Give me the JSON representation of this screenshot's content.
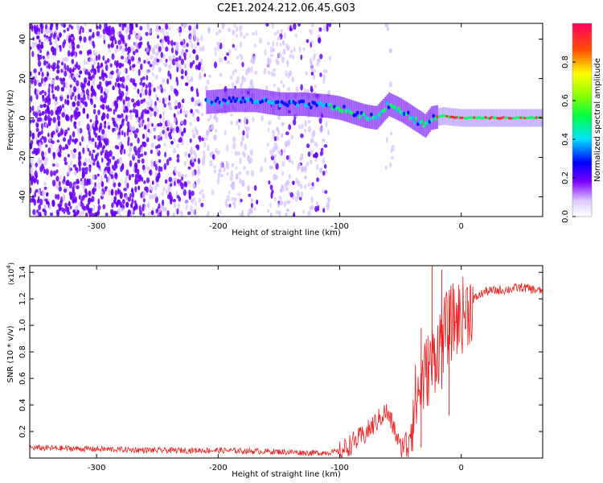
{
  "title": "C2E1.2024.212.06.45.G03",
  "colors": {
    "spectrogram_purple": "#6a00ff",
    "spectrogram_light": "#d6c0ff",
    "snr_line": "#ee2222"
  },
  "chart_data": [
    {
      "type": "heatmap",
      "name": "spectrogram",
      "xlabel": "Height of straight line (km)",
      "ylabel": "Frequency (Hz)",
      "xlim": [
        -355,
        67
      ],
      "ylim": [
        -50,
        48
      ],
      "xticks": [
        -300,
        -200,
        -100,
        0
      ],
      "yticks": [
        -40,
        -20,
        0,
        20,
        40
      ],
      "colorbar": {
        "label": "Normalized spectral amplitude",
        "range": [
          0,
          1
        ],
        "ticks": [
          "0.0",
          "0.2",
          "0.4",
          "0.6",
          "0.8"
        ],
        "tick_values": [
          0.0,
          0.2,
          0.4,
          0.6,
          0.8
        ]
      },
      "frequency_track": [
        {
          "x": -210,
          "y": 8
        },
        {
          "x": -190,
          "y": 9
        },
        {
          "x": -170,
          "y": 9
        },
        {
          "x": -150,
          "y": 7
        },
        {
          "x": -130,
          "y": 7
        },
        {
          "x": -110,
          "y": 6
        },
        {
          "x": -100,
          "y": 5
        },
        {
          "x": -90,
          "y": 3
        },
        {
          "x": -80,
          "y": 1
        },
        {
          "x": -70,
          "y": 0
        },
        {
          "x": -60,
          "y": 7
        },
        {
          "x": -50,
          "y": 4
        },
        {
          "x": -40,
          "y": 0
        },
        {
          "x": -30,
          "y": -4
        },
        {
          "x": -25,
          "y": 0
        },
        {
          "x": -15,
          "y": 1
        },
        {
          "x": 0,
          "y": 0
        },
        {
          "x": 30,
          "y": 0
        },
        {
          "x": 67,
          "y": 0
        }
      ]
    },
    {
      "type": "line",
      "name": "snr",
      "xlabel": "Height of straight line (km)",
      "ylabel": "SNR (10 * v/v)",
      "y_multiplier": "(x10",
      "y_multiplier_exp": "4",
      "y_multiplier_close": ")",
      "xlim": [
        -355,
        67
      ],
      "ylim": [
        0,
        1.45
      ],
      "xticks": [
        -300,
        -200,
        -100,
        0
      ],
      "yticks": [
        0.2,
        0.4,
        0.6,
        0.8,
        1.0,
        1.2,
        1.4
      ],
      "ytick_labels": [
        "0.2",
        "0.4",
        "0.6",
        "0.8",
        "1.0",
        "1.2",
        "1.4"
      ],
      "envelope": [
        {
          "x": -355,
          "y": 0.08
        },
        {
          "x": -300,
          "y": 0.07
        },
        {
          "x": -250,
          "y": 0.06
        },
        {
          "x": -200,
          "y": 0.06
        },
        {
          "x": -150,
          "y": 0.05
        },
        {
          "x": -120,
          "y": 0.04
        },
        {
          "x": -100,
          "y": 0.05
        },
        {
          "x": -90,
          "y": 0.12
        },
        {
          "x": -80,
          "y": 0.18
        },
        {
          "x": -70,
          "y": 0.28
        },
        {
          "x": -62,
          "y": 0.36
        },
        {
          "x": -56,
          "y": 0.25
        },
        {
          "x": -50,
          "y": 0.08
        },
        {
          "x": -45,
          "y": 0.15
        },
        {
          "x": -38,
          "y": 0.45
        },
        {
          "x": -30,
          "y": 0.65
        },
        {
          "x": -22,
          "y": 0.8
        },
        {
          "x": -15,
          "y": 0.95
        },
        {
          "x": -8,
          "y": 1.05
        },
        {
          "x": 0,
          "y": 1.1
        },
        {
          "x": 10,
          "y": 1.2
        },
        {
          "x": 20,
          "y": 1.26
        },
        {
          "x": 35,
          "y": 1.27
        },
        {
          "x": 50,
          "y": 1.29
        },
        {
          "x": 67,
          "y": 1.26
        }
      ],
      "spikes": [
        {
          "x": -24,
          "y": 1.45
        },
        {
          "x": -16,
          "y": 1.42
        },
        {
          "x": -10,
          "y": 1.22
        },
        {
          "x": -33,
          "y": 0.98
        }
      ]
    }
  ]
}
